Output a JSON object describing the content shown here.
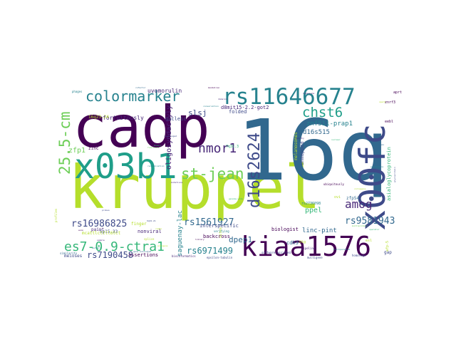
{
  "words": [
    {
      "text": "kruppel",
      "color": "#b5de2b"
    },
    {
      "text": "16q",
      "color": "#31688e"
    },
    {
      "text": "cadp",
      "color": "#440154"
    },
    {
      "text": "x00fc",
      "color": "#3e4a89"
    },
    {
      "text": "kiaa1576",
      "color": "#440154"
    },
    {
      "text": "x03b1",
      "color": "#1f9e89"
    },
    {
      "text": "rs11646677",
      "color": "#26828e"
    },
    {
      "text": "d16s2624",
      "color": "#3e4a89"
    },
    {
      "text": "st-jean",
      "color": "#6ece58"
    },
    {
      "text": "colormarker",
      "color": "#26828e"
    },
    {
      "text": "chst6",
      "color": "#1f9e89"
    },
    {
      "text": "25.5-cm",
      "color": "#6ece58"
    },
    {
      "text": "es7-0.9-ctra1",
      "color": "#35b779"
    },
    {
      "text": "nmor1",
      "color": "#482878"
    },
    {
      "text": "amog",
      "color": "#482878"
    },
    {
      "text": "rs9581943",
      "color": "#31688e"
    },
    {
      "text": "rs16986825",
      "color": "#3e4a89"
    },
    {
      "text": "rs1561927",
      "color": "#31688e"
    },
    {
      "text": "rs7190458",
      "color": "#3e4a89"
    },
    {
      "text": "rs6971499",
      "color": "#26828e"
    },
    {
      "text": "slsj",
      "color": "#3e4a89"
    },
    {
      "text": "dpep1",
      "color": "#31688e"
    },
    {
      "text": "ppel",
      "color": "#35b779"
    },
    {
      "text": "zfp1",
      "color": "#6ece58"
    },
    {
      "text": "oligosyndactyly",
      "color": "#482878"
    },
    {
      "text": "saguenay-lac",
      "color": "#26828e"
    },
    {
      "text": "linc-pint",
      "color": "#31688e"
    },
    {
      "text": "znf511-prap1",
      "color": "#26828e"
    },
    {
      "text": "d16s515",
      "color": "#31688e"
    },
    {
      "text": "unmapped",
      "color": "#3e4a89"
    },
    {
      "text": "asialoglycoprotein",
      "color": "#35b779"
    },
    {
      "text": "fortuitously",
      "color": "#482878"
    },
    {
      "text": "uvomorulin",
      "color": "#482878"
    },
    {
      "text": "nucleic",
      "color": "#3e4a89"
    },
    {
      "text": "d8mit15-2.2-got2",
      "color": "#482878"
    },
    {
      "text": "backcross",
      "color": "#440154"
    },
    {
      "text": "assertions",
      "color": "#440154"
    },
    {
      "text": "nonviral",
      "color": "#482878"
    },
    {
      "text": "interspecific",
      "color": "#3e4a89"
    },
    {
      "text": "biologist",
      "color": "#440154"
    },
    {
      "text": "cdh3",
      "color": "#31688e"
    },
    {
      "text": "folded",
      "color": "#3e4a89"
    },
    {
      "text": "zinc",
      "color": "#440154"
    },
    {
      "text": "finger",
      "color": "#b5de2b"
    },
    {
      "text": "paint",
      "color": "#482878"
    },
    {
      "text": "5p15.33",
      "color": "#3e4a89"
    },
    {
      "text": "16q23-24",
      "color": "#b5de2b"
    },
    {
      "text": "7q32.3",
      "color": "#35b779"
    },
    {
      "text": "meioses",
      "color": "#3e4a89"
    },
    {
      "text": "gap",
      "color": "#3e4a89"
    },
    {
      "text": "zfp54",
      "color": "#31688e"
    },
    {
      "text": "rs2736098",
      "color": "#26828e"
    },
    {
      "text": "eebl",
      "color": "#440154"
    },
    {
      "text": "znrf3",
      "color": "#440154"
    },
    {
      "text": "aprt",
      "color": "#440154"
    },
    {
      "text": "afp-5",
      "color": "#b5de2b"
    },
    {
      "text": "mcattlcttll6tct",
      "color": "#b5de2b"
    },
    {
      "text": "melanosomes",
      "color": "#b5de2b"
    },
    {
      "text": "sites",
      "color": "#b5de2b"
    },
    {
      "text": "ovi",
      "color": "#b5de2b"
    },
    {
      "text": "esl",
      "color": "#b5de2b"
    },
    {
      "text": "dig",
      "color": "#b5de2b"
    },
    {
      "text": "software-assisted",
      "color": "#3e4a89"
    },
    {
      "text": "epsilon-tubulin",
      "color": "#3e4a89"
    },
    {
      "text": "bioinformatics",
      "color": "#482878"
    },
    {
      "text": "multigene",
      "color": "#3e4a89"
    },
    {
      "text": "homologs",
      "color": "#3e4a89"
    },
    {
      "text": "phages",
      "color": "#26828e"
    },
    {
      "text": "similarity",
      "color": "#31688e"
    },
    {
      "text": "profiles",
      "color": "#b5de2b"
    },
    {
      "text": "genome-wide",
      "color": "#35b779"
    },
    {
      "text": "organisms",
      "color": "#482878"
    },
    {
      "text": "verifying",
      "color": "#26828e"
    },
    {
      "text": "ubiquitously",
      "color": "#440154"
    },
    {
      "text": "multiprotein",
      "color": "#6ece58"
    },
    {
      "text": "pipeline",
      "color": "#482878"
    },
    {
      "text": "glycoprotein",
      "color": "#3e4a89"
    },
    {
      "text": "sperm",
      "color": "#b5de2b"
    },
    {
      "text": "nuclear",
      "color": "#35b779"
    },
    {
      "text": "pseudogene",
      "color": "#26828e"
    },
    {
      "text": "genes",
      "color": "#31688e"
    },
    {
      "text": "library",
      "color": "#440154"
    },
    {
      "text": "9q34.21",
      "color": "#3e4a89"
    },
    {
      "text": "worthy",
      "color": "#482878"
    },
    {
      "text": "functions",
      "color": "#6ece58"
    },
    {
      "text": "conservation",
      "color": "#26828e"
    },
    {
      "text": "mendelian",
      "color": "#440154"
    },
    {
      "text": "splice",
      "color": "#b5de2b"
    },
    {
      "text": "recombination",
      "color": "#26828e"
    },
    {
      "text": "domains",
      "color": "#482878"
    },
    {
      "text": "reads",
      "color": "#b5de2b"
    },
    {
      "text": "mosaic",
      "color": "#35b779"
    },
    {
      "text": "gene-evaluated",
      "color": "#31688e"
    },
    {
      "text": "rearranged",
      "color": "#3e4a89"
    },
    {
      "text": "mutations",
      "color": "#482878"
    },
    {
      "text": "cofactor",
      "color": "#31688e"
    },
    {
      "text": "operator",
      "color": "#35b779"
    },
    {
      "text": "multiparental",
      "color": "#26828e"
    },
    {
      "text": "collagens",
      "color": "#b5de2b"
    },
    {
      "text": "exon",
      "color": "#440154"
    },
    {
      "text": "sample",
      "color": "#482878"
    },
    {
      "text": "probes",
      "color": "#3e4a89"
    },
    {
      "text": "antigens",
      "color": "#b5de2b"
    },
    {
      "text": "markers",
      "color": "#26828e"
    }
  ]
}
